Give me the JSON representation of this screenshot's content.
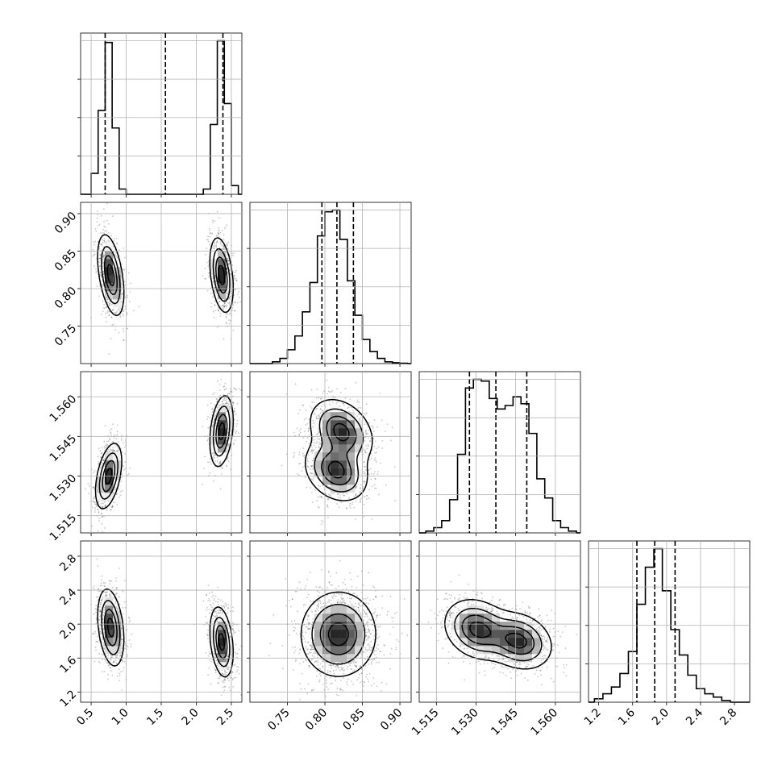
{
  "chart_data": {
    "type": "corner",
    "title": "",
    "grid": true,
    "parameters": [
      {
        "range": [
          0.35,
          2.65
        ],
        "ticks": [
          0.5,
          1.0,
          1.5,
          2.0,
          2.5
        ],
        "tick_labels": [
          "0.5",
          "1.0",
          "1.5",
          "2.0",
          "2.5"
        ],
        "quantiles": [
          0.7,
          1.56,
          2.38
        ],
        "hist": {
          "bins": [
            0.55,
            0.65,
            0.75,
            0.85,
            0.95,
            2.15,
            2.25,
            2.35,
            2.45,
            2.55
          ],
          "density": [
            0.12,
            0.48,
            0.87,
            0.38,
            0.03,
            0.03,
            0.4,
            0.88,
            0.52,
            0.05
          ]
        }
      },
      {
        "range": [
          0.7,
          0.915
        ],
        "ticks": [
          0.75,
          0.8,
          0.85,
          0.9
        ],
        "tick_labels": [
          "0.75",
          "0.80",
          "0.85",
          "0.90"
        ],
        "quantiles": [
          0.796,
          0.816,
          0.838
        ],
        "hist": {
          "bins": [
            0.735,
            0.745,
            0.755,
            0.765,
            0.775,
            0.785,
            0.795,
            0.805,
            0.815,
            0.825,
            0.835,
            0.845,
            0.855,
            0.865,
            0.875,
            0.885,
            0.895,
            0.905
          ],
          "density": [
            0.01,
            0.03,
            0.08,
            0.16,
            0.3,
            0.47,
            0.74,
            0.88,
            0.89,
            0.72,
            0.48,
            0.28,
            0.14,
            0.07,
            0.03,
            0.01,
            0.005,
            0.002
          ]
        }
      },
      {
        "range": [
          1.5085,
          1.5695
        ],
        "ticks": [
          1.515,
          1.53,
          1.545,
          1.56
        ],
        "tick_labels": [
          "1.515",
          "1.530",
          "1.545",
          "1.560"
        ],
        "quantiles": [
          1.5275,
          1.5375,
          1.5492
        ],
        "hist": {
          "bins": [
            1.5125,
            1.5155,
            1.5185,
            1.5215,
            1.5245,
            1.5275,
            1.5305,
            1.5335,
            1.5365,
            1.5395,
            1.5425,
            1.5455,
            1.5485,
            1.5515,
            1.5545,
            1.5575,
            1.5605,
            1.5635,
            1.5665
          ],
          "density": [
            0.01,
            0.03,
            0.07,
            0.19,
            0.45,
            0.83,
            0.88,
            0.87,
            0.77,
            0.71,
            0.73,
            0.78,
            0.74,
            0.57,
            0.31,
            0.2,
            0.07,
            0.03,
            0.01
          ]
        }
      },
      {
        "range": [
          1.08,
          2.98
        ],
        "ticks": [
          1.2,
          1.6,
          2.0,
          2.4,
          2.8
        ],
        "tick_labels": [
          "1.2",
          "1.6",
          "2.0",
          "2.4",
          "2.8"
        ],
        "quantiles": [
          1.65,
          1.86,
          2.1
        ],
        "hist": {
          "bins": [
            1.2,
            1.3,
            1.4,
            1.5,
            1.6,
            1.7,
            1.8,
            1.9,
            2.0,
            2.1,
            2.2,
            2.3,
            2.4,
            2.5,
            2.6,
            2.7
          ],
          "density": [
            0.02,
            0.05,
            0.09,
            0.17,
            0.3,
            0.58,
            0.8,
            0.91,
            0.66,
            0.43,
            0.28,
            0.16,
            0.08,
            0.05,
            0.03,
            0.01
          ]
        }
      }
    ],
    "pairs": [
      {
        "row": 1,
        "col": 0,
        "modes": [
          {
            "center": [
              0.78,
              0.818
            ],
            "sigma": [
              0.09,
              0.026
            ],
            "rho": -0.45,
            "weight": 0.5
          },
          {
            "center": [
              2.36,
              0.818
            ],
            "sigma": [
              0.08,
              0.024
            ],
            "rho": -0.35,
            "weight": 0.5
          }
        ]
      },
      {
        "row": 2,
        "col": 0,
        "modes": [
          {
            "center": [
              0.75,
              1.53
            ],
            "sigma": [
              0.09,
              0.006
            ],
            "rho": 0.45,
            "weight": 0.5
          },
          {
            "center": [
              2.36,
              1.547
            ],
            "sigma": [
              0.08,
              0.0065
            ],
            "rho": 0.3,
            "weight": 0.5
          }
        ]
      },
      {
        "row": 2,
        "col": 1,
        "modes": [
          {
            "center": [
              0.815,
              1.532
            ],
            "sigma": [
              0.02,
              0.0055
            ],
            "rho": -0.25,
            "weight": 0.5
          },
          {
            "center": [
              0.822,
              1.547
            ],
            "sigma": [
              0.02,
              0.0058
            ],
            "rho": -0.3,
            "weight": 0.5
          }
        ]
      },
      {
        "row": 3,
        "col": 0,
        "modes": [
          {
            "center": [
              0.78,
              1.96
            ],
            "sigma": [
              0.09,
              0.22
            ],
            "rho": -0.3,
            "weight": 0.5
          },
          {
            "center": [
              2.36,
              1.79
            ],
            "sigma": [
              0.08,
              0.2
            ],
            "rho": -0.3,
            "weight": 0.5
          }
        ]
      },
      {
        "row": 3,
        "col": 1,
        "modes": [
          {
            "center": [
              0.818,
              1.88
            ],
            "sigma": [
              0.024,
              0.24
            ],
            "rho": 0.0,
            "weight": 1.0
          }
        ]
      },
      {
        "row": 3,
        "col": 2,
        "modes": [
          {
            "center": [
              1.5305,
              1.94
            ],
            "sigma": [
              0.006,
              0.17
            ],
            "rho": -0.2,
            "weight": 0.5
          },
          {
            "center": [
              1.5462,
              1.8
            ],
            "sigma": [
              0.006,
              0.16
            ],
            "rho": -0.2,
            "weight": 0.5
          }
        ]
      }
    ]
  }
}
